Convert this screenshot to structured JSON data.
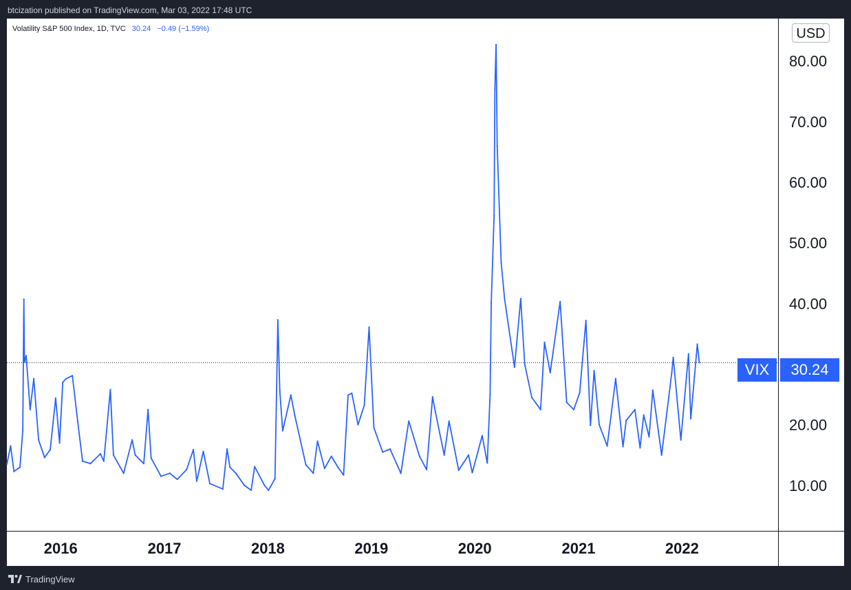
{
  "header": {
    "published_text": "btcization published on TradingView.com, Mar 03, 2022 17:48 UTC"
  },
  "legend": {
    "symbol_text": "Volatility S&P 500 Index, 1D, TVC",
    "last_value": "30.24",
    "change": "−0.49 (−1.59%)"
  },
  "currency_button": "USD",
  "price_badge": {
    "name": "VIX",
    "value": "30.24"
  },
  "footer": {
    "brand": "TradingView"
  },
  "colors": {
    "series": "#2962ff",
    "background": "#ffffff",
    "frame": "#1e222d"
  },
  "chart_data": {
    "type": "line",
    "title": "Volatility S&P 500 Index, 1D, TVC",
    "xlabel": "",
    "ylabel": "",
    "x_tick_labels": [
      "2016",
      "2017",
      "2018",
      "2019",
      "2020",
      "2021",
      "2022"
    ],
    "y_tick_labels": [
      "10.00",
      "20.00",
      "30.00",
      "40.00",
      "50.00",
      "60.00",
      "70.00",
      "80.00"
    ],
    "y_ticks": [
      10,
      20,
      30,
      40,
      50,
      60,
      70,
      80
    ],
    "ylim": [
      2.5,
      87
    ],
    "xlim": [
      "2015-06-25",
      "2022-12-06"
    ],
    "grid": false,
    "current_price_line": 30.24,
    "series": [
      {
        "name": "VIX",
        "points": [
          [
            "2015-06-25",
            13.5
          ],
          [
            "2015-07-08",
            16.5
          ],
          [
            "2015-07-20",
            12.3
          ],
          [
            "2015-08-10",
            13.0
          ],
          [
            "2015-08-20",
            19.0
          ],
          [
            "2015-08-24",
            40.7
          ],
          [
            "2015-08-26",
            30.3
          ],
          [
            "2015-09-01",
            31.4
          ],
          [
            "2015-09-15",
            22.5
          ],
          [
            "2015-09-28",
            27.6
          ],
          [
            "2015-10-15",
            17.5
          ],
          [
            "2015-11-05",
            14.6
          ],
          [
            "2015-11-25",
            15.9
          ],
          [
            "2015-12-14",
            24.4
          ],
          [
            "2015-12-28",
            17.0
          ],
          [
            "2016-01-08",
            27.0
          ],
          [
            "2016-01-20",
            27.6
          ],
          [
            "2016-02-11",
            28.1
          ],
          [
            "2016-03-01",
            20.5
          ],
          [
            "2016-03-18",
            14.0
          ],
          [
            "2016-04-15",
            13.6
          ],
          [
            "2016-05-20",
            15.2
          ],
          [
            "2016-06-01",
            14.0
          ],
          [
            "2016-06-24",
            25.8
          ],
          [
            "2016-07-05",
            15.0
          ],
          [
            "2016-08-10",
            12.0
          ],
          [
            "2016-09-09",
            17.5
          ],
          [
            "2016-09-20",
            15.0
          ],
          [
            "2016-10-20",
            13.6
          ],
          [
            "2016-11-04",
            22.5
          ],
          [
            "2016-11-15",
            14.5
          ],
          [
            "2016-12-20",
            11.5
          ],
          [
            "2017-01-20",
            12.0
          ],
          [
            "2017-02-15",
            11.0
          ],
          [
            "2017-03-20",
            12.6
          ],
          [
            "2017-04-13",
            15.9
          ],
          [
            "2017-04-25",
            10.7
          ],
          [
            "2017-05-18",
            15.6
          ],
          [
            "2017-06-10",
            10.3
          ],
          [
            "2017-07-26",
            9.4
          ],
          [
            "2017-08-10",
            16.0
          ],
          [
            "2017-08-20",
            13.0
          ],
          [
            "2017-09-10",
            12.0
          ],
          [
            "2017-10-10",
            10.0
          ],
          [
            "2017-11-03",
            9.2
          ],
          [
            "2017-11-15",
            13.1
          ],
          [
            "2017-12-20",
            10.0
          ],
          [
            "2018-01-03",
            9.2
          ],
          [
            "2018-01-26",
            11.1
          ],
          [
            "2018-02-05",
            37.3
          ],
          [
            "2018-02-12",
            25.6
          ],
          [
            "2018-02-22",
            19.0
          ],
          [
            "2018-03-23",
            24.9
          ],
          [
            "2018-04-06",
            21.5
          ],
          [
            "2018-05-15",
            13.4
          ],
          [
            "2018-06-10",
            12.0
          ],
          [
            "2018-06-25",
            17.3
          ],
          [
            "2018-07-20",
            12.8
          ],
          [
            "2018-08-13",
            14.8
          ],
          [
            "2018-09-05",
            13.0
          ],
          [
            "2018-09-25",
            11.7
          ],
          [
            "2018-10-11",
            24.9
          ],
          [
            "2018-10-24",
            25.2
          ],
          [
            "2018-11-15",
            20.0
          ],
          [
            "2018-12-07",
            23.2
          ],
          [
            "2018-12-24",
            36.1
          ],
          [
            "2019-01-10",
            19.5
          ],
          [
            "2019-02-10",
            15.5
          ],
          [
            "2019-03-08",
            16.0
          ],
          [
            "2019-04-15",
            12.0
          ],
          [
            "2019-05-13",
            20.6
          ],
          [
            "2019-06-20",
            14.8
          ],
          [
            "2019-07-15",
            12.6
          ],
          [
            "2019-08-05",
            24.6
          ],
          [
            "2019-08-15",
            22.1
          ],
          [
            "2019-09-15",
            15.0
          ],
          [
            "2019-10-02",
            20.6
          ],
          [
            "2019-11-05",
            12.5
          ],
          [
            "2019-12-10",
            15.0
          ],
          [
            "2019-12-23",
            12.1
          ],
          [
            "2020-01-27",
            18.2
          ],
          [
            "2020-02-14",
            13.7
          ],
          [
            "2020-02-24",
            25.0
          ],
          [
            "2020-02-28",
            40.1
          ],
          [
            "2020-03-09",
            54.5
          ],
          [
            "2020-03-12",
            75.5
          ],
          [
            "2020-03-16",
            82.7
          ],
          [
            "2020-03-20",
            66.0
          ],
          [
            "2020-04-03",
            46.8
          ],
          [
            "2020-04-15",
            40.8
          ],
          [
            "2020-05-20",
            29.5
          ],
          [
            "2020-06-11",
            40.8
          ],
          [
            "2020-06-25",
            30.0
          ],
          [
            "2020-07-20",
            24.5
          ],
          [
            "2020-08-20",
            22.5
          ],
          [
            "2020-09-03",
            33.6
          ],
          [
            "2020-09-23",
            28.6
          ],
          [
            "2020-10-28",
            40.3
          ],
          [
            "2020-11-20",
            23.7
          ],
          [
            "2020-12-15",
            22.5
          ],
          [
            "2021-01-05",
            25.3
          ],
          [
            "2021-01-27",
            37.2
          ],
          [
            "2021-02-12",
            19.9
          ],
          [
            "2021-02-25",
            28.9
          ],
          [
            "2021-03-15",
            20.0
          ],
          [
            "2021-04-12",
            16.5
          ],
          [
            "2021-05-12",
            27.6
          ],
          [
            "2021-06-07",
            16.4
          ],
          [
            "2021-06-18",
            20.7
          ],
          [
            "2021-07-19",
            22.5
          ],
          [
            "2021-08-06",
            16.2
          ],
          [
            "2021-08-19",
            21.6
          ],
          [
            "2021-09-07",
            18.0
          ],
          [
            "2021-09-20",
            25.7
          ],
          [
            "2021-10-21",
            15.0
          ],
          [
            "2021-11-26",
            28.6
          ],
          [
            "2021-12-01",
            31.1
          ],
          [
            "2021-12-28",
            17.5
          ],
          [
            "2022-01-24",
            31.7
          ],
          [
            "2022-02-01",
            21.0
          ],
          [
            "2022-02-14",
            28.0
          ],
          [
            "2022-02-24",
            33.3
          ],
          [
            "2022-03-03",
            30.24
          ]
        ]
      }
    ]
  }
}
